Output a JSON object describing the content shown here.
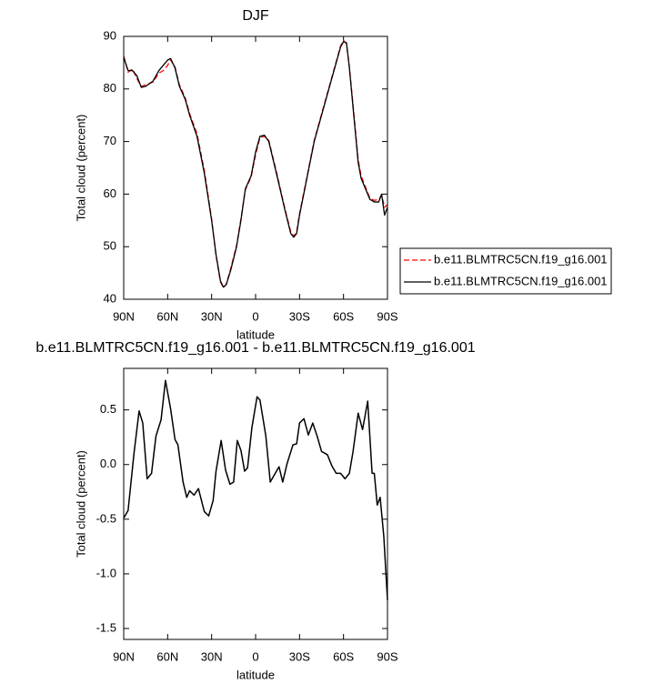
{
  "chart_data": [
    {
      "type": "line",
      "title": "DJF",
      "xlabel": "latitude",
      "ylabel": "Total cloud (percent)",
      "xlim": [
        90,
        -90
      ],
      "ylim": [
        40,
        90
      ],
      "xticks": [
        {
          "value": 90,
          "label": "90N"
        },
        {
          "value": 60,
          "label": "60N"
        },
        {
          "value": 30,
          "label": "30N"
        },
        0,
        {
          "value": -30,
          "label": "30S"
        },
        {
          "value": -60,
          "label": "60S"
        },
        {
          "value": -90,
          "label": "90S"
        }
      ],
      "yticks": [
        40,
        50,
        60,
        70,
        80,
        90
      ],
      "legend": "right",
      "x": [
        90,
        87,
        84,
        81,
        78,
        75,
        70,
        66,
        63,
        60,
        58,
        55,
        52,
        48,
        45,
        40,
        35,
        30,
        27,
        24,
        22,
        20,
        17,
        13,
        10,
        7,
        3,
        0,
        -3,
        -6,
        -9,
        -12,
        -15,
        -20,
        -24,
        -26,
        -28,
        -30,
        -35,
        -40,
        -45,
        -50,
        -55,
        -58,
        -60,
        -62,
        -64,
        -67,
        -70,
        -72,
        -75,
        -78,
        -81,
        -84,
        -86,
        -88,
        -90
      ],
      "series": [
        {
          "name": "b.e11.BLMTRC5CN.f19_g16.001",
          "color": "#ff0000",
          "dashed": true,
          "values": [
            86.3,
            83.2,
            83.8,
            82,
            80.5,
            80.8,
            81.3,
            83,
            83.5,
            84.5,
            85.5,
            84.2,
            80.8,
            78.3,
            75.3,
            71.5,
            64.5,
            55.3,
            48.3,
            43.3,
            42.2,
            42.9,
            45.8,
            50.2,
            55.3,
            60.8,
            63.3,
            67.5,
            70.8,
            71,
            70.2,
            66.8,
            63.3,
            57.2,
            52.8,
            52,
            52.8,
            56.3,
            63.2,
            70.2,
            75.2,
            80.2,
            85.2,
            88.2,
            89.2,
            88.6,
            84.2,
            75.5,
            66.5,
            63.5,
            61.3,
            59.2,
            58.8,
            59,
            59.8,
            57.5,
            58
          ]
        },
        {
          "name": "b.e11.BLMTRC5CN.f19_g16.001",
          "color": "#000000",
          "dashed": false,
          "values": [
            86,
            83.5,
            83.5,
            82.5,
            80.3,
            80.5,
            81.5,
            83.5,
            84.5,
            85.5,
            85.8,
            84,
            80.5,
            78,
            75,
            71,
            64,
            55,
            48.5,
            43.5,
            42.3,
            42.8,
            45.5,
            50,
            55,
            61,
            63.5,
            68,
            71,
            71.2,
            70,
            66.5,
            63,
            57,
            52.5,
            51.8,
            52.5,
            56,
            63,
            70,
            75,
            80,
            85,
            88,
            89,
            88.8,
            84,
            75,
            66,
            63,
            61,
            59,
            58.5,
            58.5,
            60,
            56,
            57.5
          ]
        }
      ]
    },
    {
      "type": "line",
      "title": "b.e11.BLMTRC5CN.f19_g16.001 - b.e11.BLMTRC5CN.f19_g16.001",
      "xlabel": "latitude",
      "ylabel": "Total cloud (percent)",
      "xlim": [
        90,
        -90
      ],
      "ylim": [
        -1.6,
        0.88
      ],
      "xticks": [
        {
          "value": 90,
          "label": "90N"
        },
        {
          "value": 60,
          "label": "60N"
        },
        {
          "value": 30,
          "label": "30N"
        },
        0,
        {
          "value": -30,
          "label": "30S"
        },
        {
          "value": -60,
          "label": "60S"
        },
        {
          "value": -90,
          "label": "90S"
        }
      ],
      "yticks": [
        0.5,
        {
          "value": 0,
          "label": "0.0"
        },
        -0.5,
        {
          "value": -1,
          "label": "-1.0"
        },
        -1.5
      ],
      "color": "#000000",
      "x": [
        90,
        87,
        83,
        79.5,
        77,
        74,
        71,
        68,
        64.5,
        61.5,
        58,
        55,
        53,
        49.5,
        47,
        45,
        42,
        39,
        35,
        32,
        29,
        27,
        23.5,
        20.5,
        17.5,
        15,
        12.5,
        10,
        7.5,
        5.5,
        2.5,
        -1,
        -3,
        -7,
        -10,
        -13,
        -16,
        -18.5,
        -21.5,
        -25.5,
        -28,
        -30,
        -33,
        -36,
        -39,
        -42,
        -45,
        -49,
        -52,
        -55,
        -58,
        -61,
        -64,
        -66.5,
        -70,
        -73,
        -76.5,
        -79.5,
        -81,
        -83,
        -85,
        -87.5,
        -90
      ],
      "values": [
        -0.49,
        -0.42,
        0.1,
        0.49,
        0.38,
        -0.13,
        -0.08,
        0.26,
        0.41,
        0.77,
        0.51,
        0.23,
        0.18,
        -0.16,
        -0.3,
        -0.24,
        -0.28,
        -0.22,
        -0.43,
        -0.47,
        -0.33,
        -0.06,
        0.22,
        -0.05,
        -0.18,
        -0.16,
        0.22,
        0.13,
        -0.06,
        -0.03,
        0.34,
        0.62,
        0.59,
        0.26,
        -0.16,
        -0.09,
        -0.02,
        -0.16,
        0.01,
        0.18,
        0.19,
        0.38,
        0.42,
        0.27,
        0.38,
        0.26,
        0.12,
        0.09,
        -0.01,
        -0.08,
        -0.08,
        -0.13,
        -0.08,
        0.12,
        0.47,
        0.32,
        0.58,
        -0.08,
        -0.08,
        -0.37,
        -0.3,
        -0.66,
        -1.24
      ]
    }
  ]
}
